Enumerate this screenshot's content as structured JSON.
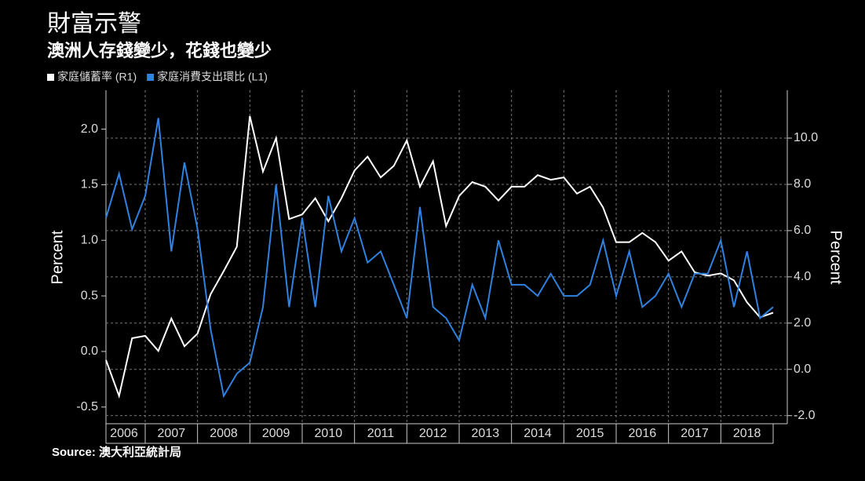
{
  "chart_data": {
    "type": "line",
    "title": "財富示警",
    "subtitle": "澳洲人存錢變少，花錢也變少",
    "source": "Source: 澳大利亞統計局",
    "ylabel": "Percent",
    "y2label": "Percent",
    "x": [
      2006.25,
      2006.5,
      2006.75,
      2007,
      2007.25,
      2007.5,
      2007.75,
      2008,
      2008.25,
      2008.5,
      2008.75,
      2009,
      2009.25,
      2009.5,
      2009.75,
      2010,
      2010.25,
      2010.5,
      2010.75,
      2011,
      2011.25,
      2011.5,
      2011.75,
      2012,
      2012.25,
      2012.5,
      2012.75,
      2013,
      2013.25,
      2013.5,
      2013.75,
      2014,
      2014.25,
      2014.5,
      2014.75,
      2015,
      2015.25,
      2015.5,
      2015.75,
      2016,
      2016.25,
      2016.5,
      2016.75,
      2017,
      2017.25,
      2017.5,
      2017.75,
      2018,
      2018.25,
      2018.5,
      2018.75,
      2019
    ],
    "xlim": [
      2006.25,
      2019
    ],
    "xticks": [
      {
        "value": 2006.5,
        "label": "2006"
      },
      {
        "value": 2007.5,
        "label": "2007"
      },
      {
        "value": 2008.5,
        "label": "2008"
      },
      {
        "value": 2009.5,
        "label": "2009"
      },
      {
        "value": 2010.5,
        "label": "2010"
      },
      {
        "value": 2011.5,
        "label": "2011"
      },
      {
        "value": 2012.5,
        "label": "2012"
      },
      {
        "value": 2013.5,
        "label": "2013"
      },
      {
        "value": 2014.5,
        "label": "2014"
      },
      {
        "value": 2015.5,
        "label": "2015"
      },
      {
        "value": 2016.5,
        "label": "2016"
      },
      {
        "value": 2017.5,
        "label": "2017"
      },
      {
        "value": 2018.5,
        "label": "2018"
      }
    ],
    "ylim": [
      -0.65,
      2.35
    ],
    "yticks": [
      -0.5,
      {
        "value": 0,
        "label": "0.0"
      },
      0.5,
      {
        "value": 1,
        "label": "1.0"
      },
      1.5,
      {
        "value": 2,
        "label": "2.0"
      }
    ],
    "y2lim": [
      -2.35,
      12.07
    ],
    "y2ticks": [
      {
        "value": -2,
        "label": "-2.0"
      },
      {
        "value": 0,
        "label": "0.0"
      },
      {
        "value": 2,
        "label": "2.0"
      },
      {
        "value": 4,
        "label": "4.0"
      },
      {
        "value": 6,
        "label": "6.0"
      },
      {
        "value": 8,
        "label": "8.0"
      },
      {
        "value": 10,
        "label": "10.0"
      }
    ],
    "grid": true,
    "series": [
      {
        "name": "家庭儲蓄率 (R1)",
        "color": "#ffffff",
        "axis": "y2",
        "values": [
          0.4,
          -1.15,
          1.35,
          1.45,
          0.8,
          2.2,
          1.0,
          1.55,
          3.25,
          4.25,
          5.3,
          10.95,
          8.55,
          10.0,
          6.5,
          6.7,
          7.4,
          6.4,
          7.4,
          8.6,
          9.2,
          8.3,
          8.8,
          9.9,
          7.9,
          9.0,
          6.2,
          7.5,
          8.1,
          7.9,
          7.3,
          7.9,
          7.9,
          8.4,
          8.2,
          8.3,
          7.6,
          7.9,
          7.0,
          5.5,
          5.5,
          5.9,
          5.5,
          4.7,
          5.1,
          4.2,
          4.05,
          4.15,
          3.85,
          2.9,
          2.25,
          2.45
        ]
      },
      {
        "name": "家庭消費支出環比 (L1)",
        "color": "#2f82e0",
        "axis": "y",
        "values": [
          1.2,
          1.6,
          1.1,
          1.4,
          2.1,
          0.9,
          1.7,
          1.1,
          0.2,
          -0.4,
          -0.2,
          -0.1,
          0.4,
          1.5,
          0.4,
          1.2,
          0.4,
          1.4,
          0.9,
          1.2,
          0.8,
          0.9,
          0.6,
          0.3,
          1.3,
          0.4,
          0.3,
          0.1,
          0.6,
          0.3,
          1.0,
          0.6,
          0.6,
          0.5,
          0.7,
          0.5,
          0.5,
          0.6,
          1.0,
          0.5,
          0.9,
          0.4,
          0.5,
          0.7,
          0.4,
          0.7,
          0.7,
          1.0,
          0.4,
          0.9,
          0.3,
          0.4
        ]
      }
    ]
  }
}
